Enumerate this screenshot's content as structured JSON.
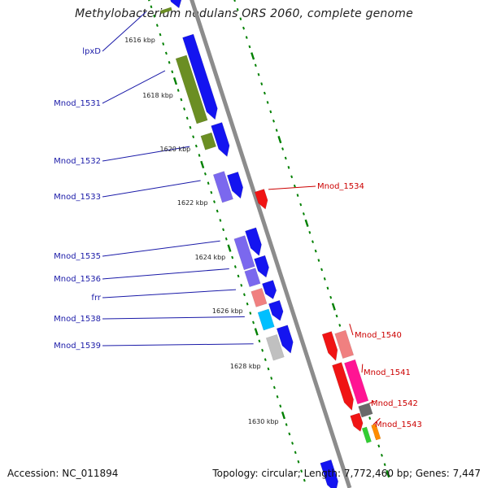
{
  "title": "Methylobacterium nodulans ORS 2060, complete genome",
  "footer": {
    "accession": "Accession: NC_011894",
    "stats": "Topology: circular; Length: 7,772,460 bp; Genes: 7,447"
  },
  "colors": {
    "backbone": "#8c8c8c",
    "forward_gene": "#1414f0",
    "reverse_gene": "#f01414",
    "olive": "#6b8e23",
    "slate": "#7b68ee",
    "salmon": "#f08080",
    "cyan": "#00bfff",
    "silver": "#c0c0c0",
    "magenta": "#ff1493",
    "gray": "#696969",
    "green": "#32cd32",
    "orange": "#ff8c00",
    "tick": "#008000"
  },
  "ticks": [
    {
      "label": "1616 kbp",
      "pos": 1616
    },
    {
      "label": "1618 kbp",
      "pos": 1618
    },
    {
      "label": "1620 kbp",
      "pos": 1620
    },
    {
      "label": "1622 kbp",
      "pos": 1622
    },
    {
      "label": "1624 kbp",
      "pos": 1624
    },
    {
      "label": "1626 kbp",
      "pos": 1626
    },
    {
      "label": "1628 kbp",
      "pos": 1628
    },
    {
      "label": "1630 kbp",
      "pos": 1630
    }
  ],
  "genes_left": [
    {
      "label": "lpxD",
      "category": "olive"
    },
    {
      "label": "Mnod_1531",
      "category": "olive"
    },
    {
      "label": "Mnod_1532",
      "category": "olive"
    },
    {
      "label": "Mnod_1533",
      "category": "slate"
    },
    {
      "label": "Mnod_1535",
      "category": "slate"
    },
    {
      "label": "Mnod_1536",
      "category": "slate"
    },
    {
      "label": "frr",
      "category": "salmon"
    },
    {
      "label": "Mnod_1538",
      "category": "cyan"
    },
    {
      "label": "Mnod_1539",
      "category": "silver"
    }
  ],
  "genes_right": [
    {
      "label": "Mnod_1534",
      "category": "none"
    },
    {
      "label": "Mnod_1540",
      "category": "salmon"
    },
    {
      "label": "Mnod_1541",
      "category": "magenta"
    },
    {
      "label": "Mnod_1542",
      "category": "gray"
    },
    {
      "label": "Mnod_1543",
      "category": "green/orange"
    }
  ]
}
